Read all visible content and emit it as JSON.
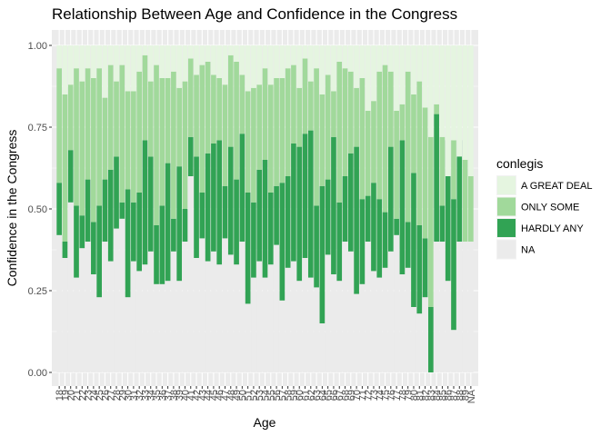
{
  "chart_data": {
    "type": "bar",
    "stacked": true,
    "title": "Relationship Between Age and Confidence in the Congress",
    "xlabel": "Age",
    "ylabel": "Confidence in the Congress",
    "ylim": [
      0,
      1
    ],
    "yticks": [
      "0.00",
      "0.25",
      "0.50",
      "0.75",
      "1.00"
    ],
    "legend": {
      "title": "conlegis",
      "position": "right",
      "entries": [
        "A GREAT DEAL",
        "ONLY SOME",
        "HARDLY ANY",
        "NA"
      ]
    },
    "colors": {
      "A GREAT DEAL": "#e5f5e0",
      "ONLY SOME": "#a1d99b",
      "HARDLY ANY": "#31a354",
      "NA": "#ebebeb",
      "panel": "#ebebeb",
      "grid": "#ffffff"
    },
    "categories": [
      "18",
      "19",
      "20",
      "21",
      "22",
      "23",
      "24",
      "25",
      "26",
      "27",
      "28",
      "29",
      "30",
      "31",
      "32",
      "33",
      "34",
      "35",
      "36",
      "37",
      "38",
      "39",
      "40",
      "41",
      "42",
      "43",
      "44",
      "45",
      "46",
      "47",
      "48",
      "49",
      "50",
      "51",
      "52",
      "53",
      "54",
      "55",
      "56",
      "57",
      "58",
      "59",
      "60",
      "61",
      "62",
      "63",
      "64",
      "65",
      "66",
      "67",
      "68",
      "69",
      "70",
      "71",
      "72",
      "73",
      "74",
      "75",
      "76",
      "77",
      "78",
      "79",
      "80",
      "81",
      "82",
      "83",
      "84",
      "85",
      "86",
      "87",
      "88",
      "89",
      "NA"
    ],
    "cumulative_levels": {
      "note": "Bottom-to-top stacked boundaries: NA runs 0..na_top, HARDLY ANY runs na_top..hardly_top, ONLY SOME runs hardly_top..some_top, A GREAT DEAL runs some_top..1",
      "na_top": [
        0.42,
        0.35,
        0.52,
        0.29,
        0.38,
        0.4,
        0.3,
        0.23,
        0.4,
        0.34,
        0.44,
        0.47,
        0.23,
        0.34,
        0.31,
        0.33,
        0.37,
        0.27,
        0.27,
        0.28,
        0.37,
        0.28,
        0.4,
        0.6,
        0.35,
        0.41,
        0.34,
        0.37,
        0.33,
        0.41,
        0.36,
        0.33,
        0.4,
        0.21,
        0.29,
        0.34,
        0.29,
        0.33,
        0.39,
        0.22,
        0.32,
        0.34,
        0.28,
        0.35,
        0.29,
        0.26,
        0.15,
        0.36,
        0.3,
        0.28,
        0.4,
        0.37,
        0.24,
        0.27,
        0.4,
        0.31,
        0.29,
        0.32,
        0.37,
        0.42,
        0.3,
        0.32,
        0.2,
        0.18,
        0.23,
        0.0,
        0.4,
        0.4,
        0.28,
        0.13,
        0.4,
        0.4,
        0.4
      ],
      "hardly_top": [
        0.58,
        0.4,
        0.68,
        0.51,
        0.48,
        0.59,
        0.46,
        0.51,
        0.59,
        0.62,
        0.66,
        0.52,
        0.56,
        0.52,
        0.55,
        0.71,
        0.66,
        0.45,
        0.51,
        0.64,
        0.47,
        0.63,
        0.5,
        0.72,
        0.66,
        0.55,
        0.67,
        0.7,
        0.71,
        0.57,
        0.69,
        0.59,
        0.73,
        0.55,
        0.52,
        0.62,
        0.65,
        0.55,
        0.57,
        0.58,
        0.6,
        0.7,
        0.69,
        0.73,
        0.74,
        0.51,
        0.57,
        0.59,
        0.72,
        0.52,
        0.6,
        0.67,
        0.69,
        0.53,
        0.54,
        0.58,
        0.53,
        0.49,
        0.69,
        0.47,
        0.71,
        0.46,
        0.61,
        0.45,
        0.41,
        0.2,
        0.79,
        0.51,
        0.71,
        0.53,
        0.71,
        0.4,
        0.4
      ],
      "some_top": [
        0.93,
        0.85,
        0.88,
        0.93,
        0.89,
        0.93,
        0.9,
        0.93,
        0.84,
        0.94,
        0.89,
        0.94,
        0.86,
        0.86,
        0.92,
        0.97,
        0.89,
        0.94,
        0.9,
        0.9,
        0.92,
        0.87,
        0.89,
        0.96,
        0.91,
        0.94,
        0.95,
        0.91,
        0.9,
        0.88,
        0.97,
        0.95,
        0.91,
        0.86,
        0.87,
        0.88,
        0.93,
        0.88,
        0.9,
        0.9,
        0.93,
        0.94,
        0.87,
        0.96,
        0.89,
        0.93,
        0.85,
        0.91,
        0.86,
        0.95,
        0.93,
        0.92,
        0.87,
        0.9,
        0.8,
        0.83,
        0.92,
        0.94,
        0.92,
        0.8,
        0.82,
        0.92,
        0.85,
        0.89,
        0.81,
        0.72,
        0.82,
        0.72,
        0.6,
        0.71,
        0.66,
        0.65,
        0.6
      ]
    }
  }
}
